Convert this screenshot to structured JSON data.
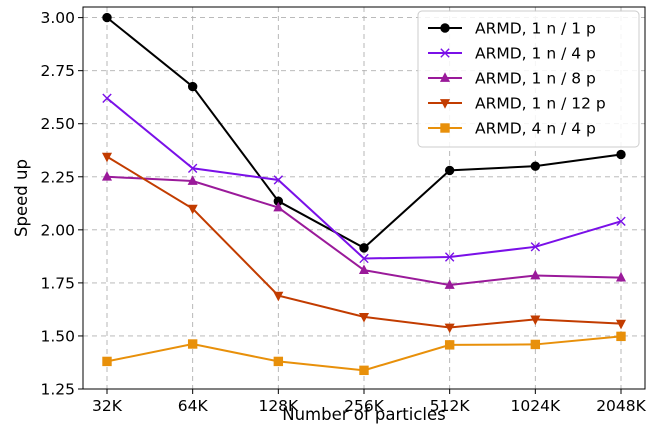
{
  "chart_data": {
    "type": "line",
    "title": "",
    "xlabel": "Number of particles",
    "ylabel": "Speed up",
    "categories": [
      "32K",
      "64K",
      "128K",
      "256K",
      "512K",
      "1024K",
      "2048K"
    ],
    "ylim": [
      1.25,
      3.05
    ],
    "yticks": [
      1.25,
      1.5,
      1.75,
      2.0,
      2.25,
      2.5,
      2.75,
      3.0
    ],
    "ytick_labels": [
      "1.25",
      "1.50",
      "1.75",
      "2.00",
      "2.25",
      "2.50",
      "2.75",
      "3.00"
    ],
    "grid": true,
    "legend_position": "top-right",
    "series": [
      {
        "name": "ARMD, 1 n / 1 p",
        "color": "#000000",
        "marker": "circle",
        "values": [
          3.0,
          2.675,
          2.135,
          1.915,
          2.28,
          2.3,
          2.355
        ]
      },
      {
        "name": "ARMD, 1 n / 4 p",
        "color": "#7a10e8",
        "marker": "x",
        "values": [
          2.62,
          2.29,
          2.235,
          1.865,
          1.872,
          1.92,
          2.04
        ]
      },
      {
        "name": "ARMD, 1 n / 8 p",
        "color": "#9a1a9a",
        "marker": "triangle-up",
        "values": [
          2.25,
          2.23,
          2.105,
          1.81,
          1.74,
          1.785,
          1.775
        ]
      },
      {
        "name": "ARMD, 1 n / 12 p",
        "color": "#c23c00",
        "marker": "triangle-down",
        "values": [
          2.345,
          2.1,
          1.69,
          1.59,
          1.54,
          1.578,
          1.558
        ]
      },
      {
        "name": "ARMD, 4 n / 4 p",
        "color": "#e8900a",
        "marker": "square",
        "values": [
          1.38,
          1.462,
          1.38,
          1.338,
          1.458,
          1.46,
          1.498
        ]
      }
    ]
  }
}
